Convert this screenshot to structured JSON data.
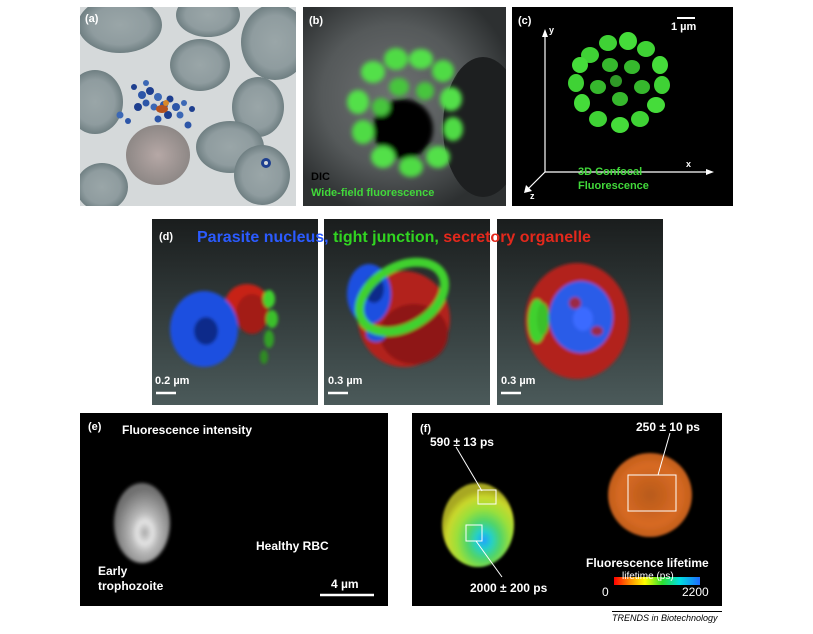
{
  "figure": {
    "panels": [
      {
        "label": "(a)"
      },
      {
        "label": "(b)",
        "overlay_dic": "DIC",
        "overlay_wf": "Wide-field fluorescence"
      },
      {
        "label": "(c)",
        "scale": "1 µm",
        "axis_y": "y",
        "axis_x": "x",
        "axis_z": "z",
        "caption_line1": "3D Confocal",
        "caption_line2": "Fluorescence"
      },
      {
        "label": "(d)",
        "legend": [
          {
            "text": "Parasite nucleus,",
            "color": "#2b5bff"
          },
          {
            "text": "tight junction,",
            "color": "#31d421"
          },
          {
            "text": "secretory organelle",
            "color": "#e3281c"
          }
        ],
        "scales": [
          "0.2 µm",
          "0.3 µm",
          "0.3 µm"
        ]
      },
      {
        "label": "(e)",
        "title": "Fluorescence intensity",
        "cell_label_line1": "Early",
        "cell_label_line2": "trophozoite",
        "rbc_label": "Healthy RBC",
        "scale": "4 µm"
      },
      {
        "label": "(f)",
        "roi_1": "590 ± 13 ps",
        "roi_2": "2000 ± 200 ps",
        "roi_3": "250 ± 10 ps",
        "colorbar_title": "Fluorescence lifetime",
        "colorbar_unit": "lifetime (ps)",
        "colorbar_min": "0",
        "colorbar_max": "2200"
      }
    ],
    "credit": "TRENDS in Biotechnology"
  }
}
